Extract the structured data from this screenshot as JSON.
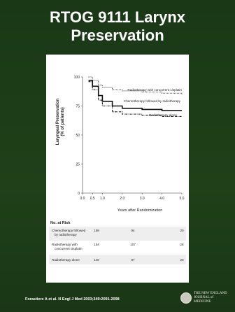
{
  "slide": {
    "title_line1": "RTOG 9111 Larynx",
    "title_line2": "Preservation",
    "citation": "Forastiere A et al. N Engl J Med 2003;349:2091-2098",
    "logo_text": "THE NEW ENGLAND\nJOURNAL of MEDICINE"
  },
  "chart_data": {
    "type": "line",
    "xlabel": "Years after Randomization",
    "ylabel_line1": "Laryngeal Preservation",
    "ylabel_line2": "(% of patients)",
    "xlim": [
      0,
      5
    ],
    "ylim": [
      0,
      100
    ],
    "x_ticks": [
      "0.0",
      "0.5",
      "1.0",
      "2.0",
      "3.0",
      "4.0",
      "5.0"
    ],
    "y_ticks": [
      "0",
      "25",
      "50",
      "75",
      "100"
    ],
    "series": [
      {
        "name": "Radiotherapy with concurrent cisplatin",
        "style": "dotted",
        "x": [
          0.3,
          0.5,
          0.8,
          1.0,
          1.5,
          2.0,
          3.0,
          4.0,
          5.0
        ],
        "y": [
          100,
          97,
          93,
          91,
          89,
          88,
          87,
          86,
          85
        ]
      },
      {
        "name": "Chemotherapy followed by radiotherapy",
        "style": "solid",
        "x": [
          0.3,
          0.5,
          0.8,
          1.0,
          1.5,
          2.0,
          3.0,
          4.0,
          5.0
        ],
        "y": [
          97,
          92,
          84,
          79,
          75,
          73,
          72,
          71,
          71
        ]
      },
      {
        "name": "Radiotherapy alone",
        "style": "dashdot",
        "x": [
          0.3,
          0.5,
          0.8,
          1.0,
          1.5,
          2.0,
          3.0,
          4.0,
          5.0
        ],
        "y": [
          96,
          89,
          80,
          75,
          70,
          68,
          67,
          66,
          66
        ]
      }
    ]
  },
  "risk_table": {
    "header": "No. at Risk",
    "rows": [
      {
        "label": "Chemotherapy followed by radiotherapy",
        "values": [
          "158",
          "94",
          "20"
        ]
      },
      {
        "label": "Radiotherapy with concurrent cisplatin",
        "values": [
          "154",
          "107",
          "28"
        ]
      },
      {
        "label": "Radiotherapy alone",
        "values": [
          "146",
          "87",
          "20"
        ]
      }
    ]
  }
}
